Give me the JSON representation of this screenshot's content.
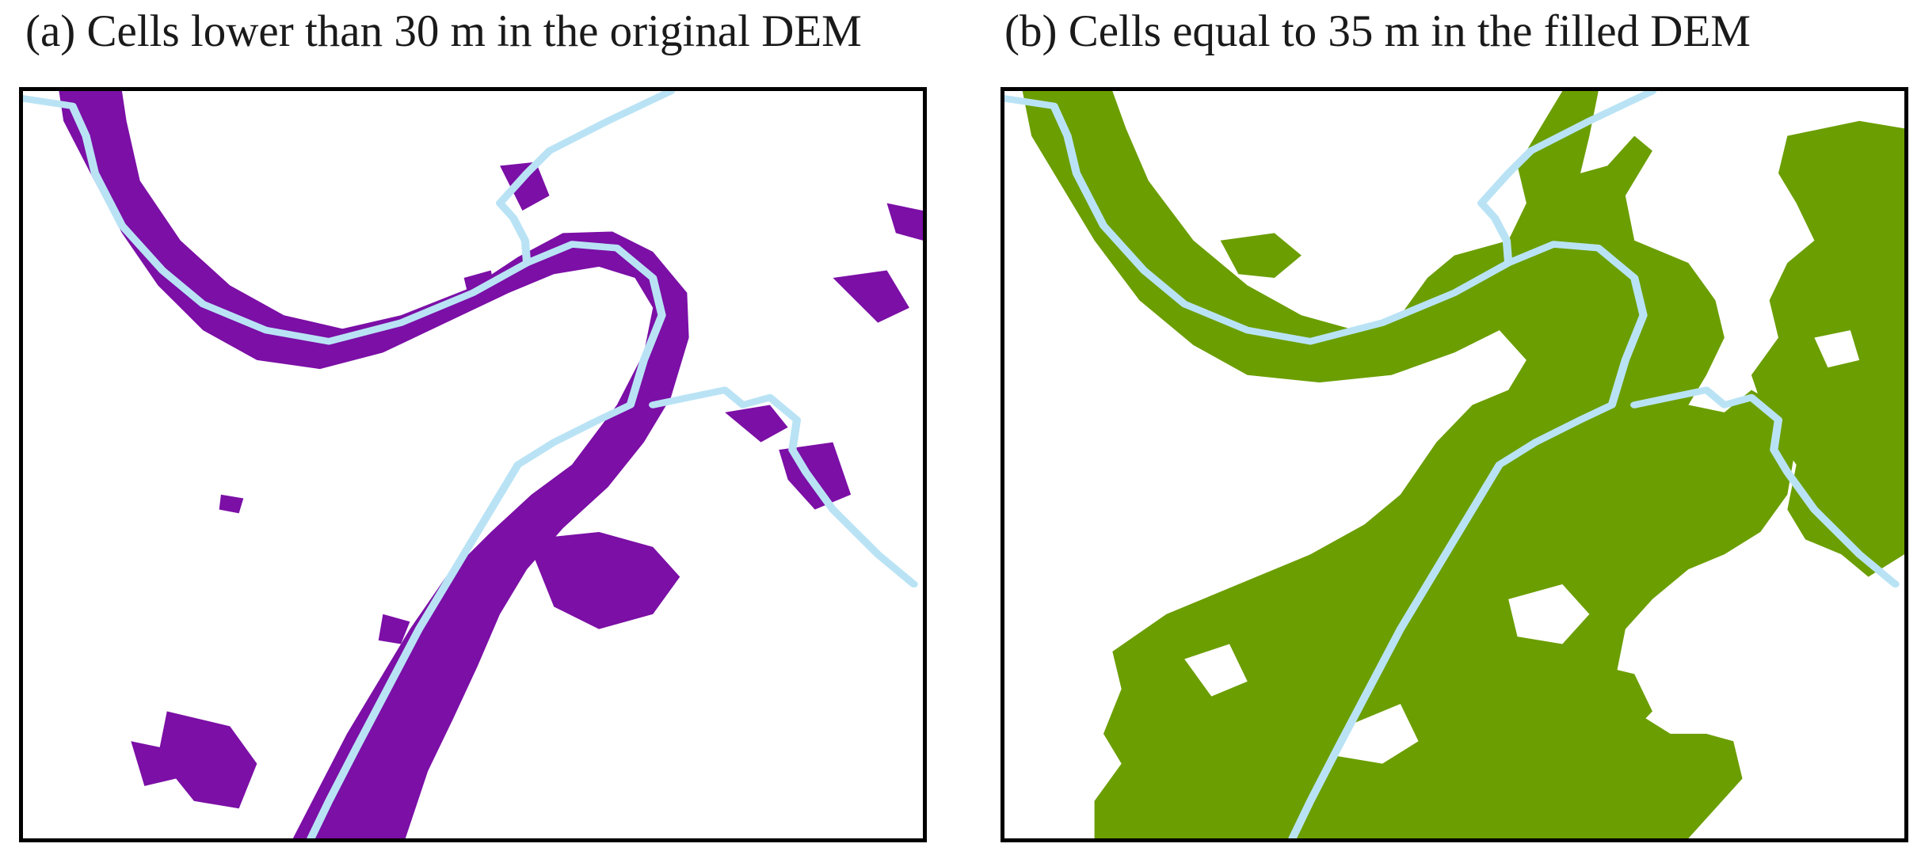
{
  "panels": [
    {
      "id": "a",
      "title": "(a) Cells lower than 30 m in the original DEM",
      "fill_color": "#7b0fa6",
      "river_color": "#b9e3f5",
      "extent": "narrow river corridor"
    },
    {
      "id": "b",
      "title": "(b) Cells equal to 35 m in the filled DEM",
      "fill_color": "#6b9e00",
      "river_color": "#b9e3f5",
      "extent": "wide floodplain"
    }
  ]
}
